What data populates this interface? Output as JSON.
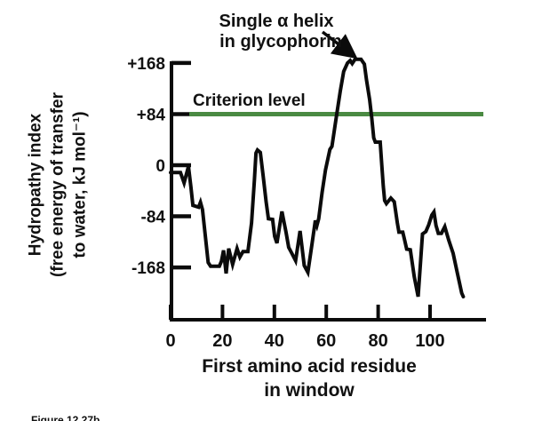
{
  "figure": {
    "caption": "Figure 12.27b"
  },
  "chart_data": {
    "type": "line",
    "title": "",
    "xlabel_line1": "First amino acid residue",
    "xlabel_line2": "in window",
    "ylabel_lines": [
      "Hydropathy index",
      "(free energy of transfer",
      "to water, kJ mol⁻¹)"
    ],
    "annotation": {
      "line1": "Single α helix",
      "line2": "in glycophorin",
      "points_to": "peak near residues 68–75"
    },
    "criterion_label": "Criterion level",
    "criterion_level": 84,
    "criterion_color": "#4a8a42",
    "line_color": "#0b0b0b",
    "axis_color": "#0b0b0b",
    "x_ticks": [
      0,
      20,
      40,
      60,
      80,
      100
    ],
    "y_ticks": [
      {
        "label": "+168",
        "value": 168
      },
      {
        "label": "+84",
        "value": 84
      },
      {
        "label": "0",
        "value": 0
      },
      {
        "label": "-84",
        "value": -84
      },
      {
        "label": "-168",
        "value": -168
      }
    ],
    "xlim": [
      0,
      121
    ],
    "ylim": [
      -255,
      175
    ],
    "grid": false,
    "legend": "none",
    "series": [
      {
        "name": "glycophorin hydropathy",
        "points": [
          [
            0,
            -12
          ],
          [
            3.8,
            -12
          ],
          [
            5.2,
            -29
          ],
          [
            6.9,
            -2
          ],
          [
            7.8,
            -35
          ],
          [
            8.6,
            -66
          ],
          [
            10.8,
            -69
          ],
          [
            11.5,
            -61
          ],
          [
            12.3,
            -73
          ],
          [
            14.5,
            -160
          ],
          [
            15.4,
            -166
          ],
          [
            18.8,
            -166
          ],
          [
            19.6,
            -158
          ],
          [
            20.4,
            -140
          ],
          [
            21.4,
            -178
          ],
          [
            22.4,
            -137
          ],
          [
            23.9,
            -163
          ],
          [
            25.6,
            -137
          ],
          [
            26.7,
            -151
          ],
          [
            27.9,
            -142
          ],
          [
            29.8,
            -142
          ],
          [
            31.2,
            -95
          ],
          [
            32.3,
            -25
          ],
          [
            32.9,
            20
          ],
          [
            33.5,
            25
          ],
          [
            34.6,
            21
          ],
          [
            35.7,
            -18
          ],
          [
            36.8,
            -60
          ],
          [
            37.7,
            -88
          ],
          [
            39.3,
            -89
          ],
          [
            40.1,
            -117
          ],
          [
            41,
            -128
          ],
          [
            42.9,
            -76
          ],
          [
            44.5,
            -110
          ],
          [
            45.5,
            -135
          ],
          [
            46.5,
            -143
          ],
          [
            48.2,
            -157
          ],
          [
            49.9,
            -108
          ],
          [
            51.5,
            -165
          ],
          [
            52.9,
            -176
          ],
          [
            54.5,
            -130
          ],
          [
            55.8,
            -91
          ],
          [
            56.4,
            -99
          ],
          [
            57.1,
            -88
          ],
          [
            58.4,
            -45
          ],
          [
            59.7,
            -8
          ],
          [
            61.4,
            26
          ],
          [
            62.2,
            31
          ],
          [
            63.9,
            80
          ],
          [
            65.4,
            122
          ],
          [
            66.7,
            154
          ],
          [
            68.2,
            168
          ],
          [
            69.2,
            172
          ],
          [
            70,
            167
          ],
          [
            71.1,
            174
          ],
          [
            73.4,
            174
          ],
          [
            74.7,
            166
          ],
          [
            75.5,
            140
          ],
          [
            76.7,
            108
          ],
          [
            77.5,
            79
          ],
          [
            78.3,
            45
          ],
          [
            78.9,
            38
          ],
          [
            80.8,
            38
          ],
          [
            81.4,
            0
          ],
          [
            82,
            -35
          ],
          [
            82.5,
            -58
          ],
          [
            83.2,
            -63
          ],
          [
            84.9,
            -54
          ],
          [
            86.2,
            -60
          ],
          [
            87.4,
            -95
          ],
          [
            88,
            -110
          ],
          [
            89.5,
            -110
          ],
          [
            90.2,
            -123
          ],
          [
            91,
            -138
          ],
          [
            92.4,
            -139
          ],
          [
            93.9,
            -183
          ],
          [
            95.4,
            -216
          ],
          [
            96.4,
            -155
          ],
          [
            97.1,
            -113
          ],
          [
            98.4,
            -109
          ],
          [
            99.5,
            -98
          ],
          [
            100.7,
            -82
          ],
          [
            101.5,
            -77
          ],
          [
            102.3,
            -99
          ],
          [
            103.2,
            -112
          ],
          [
            104.4,
            -112
          ],
          [
            105.7,
            -101
          ],
          [
            107.2,
            -123
          ],
          [
            108.9,
            -145
          ],
          [
            110.4,
            -175
          ],
          [
            112.2,
            -210
          ],
          [
            112.8,
            -216
          ]
        ]
      }
    ]
  }
}
